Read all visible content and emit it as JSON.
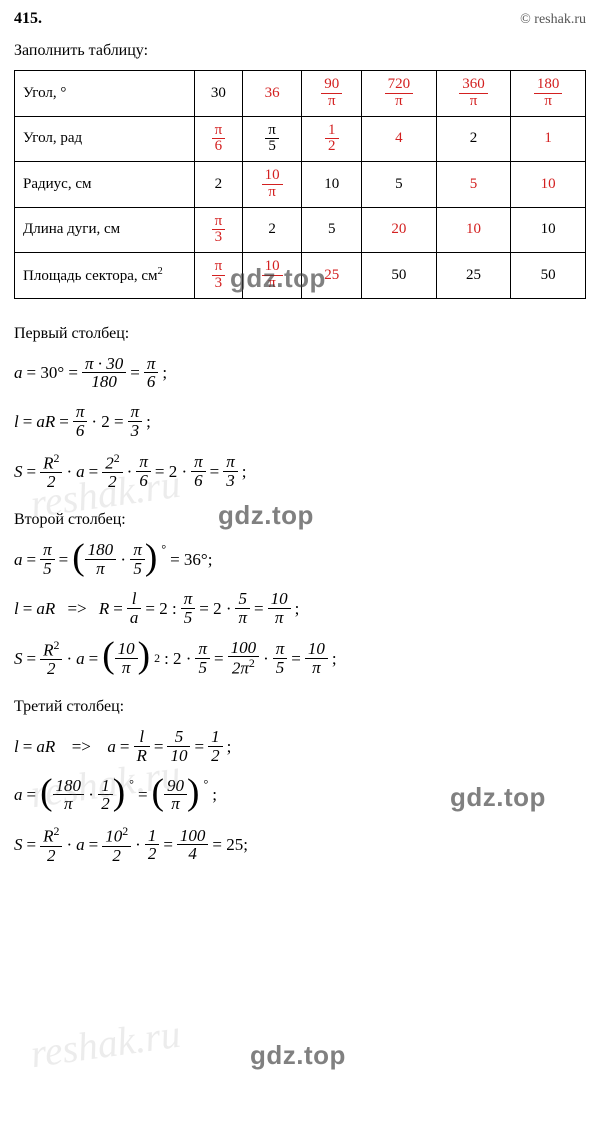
{
  "header": {
    "problem_number": "415.",
    "credit": "© reshak.ru"
  },
  "task_prompt": "Заполнить таблицу:",
  "table": {
    "rows": [
      {
        "label": "Угол, °",
        "cells": [
          {
            "type": "plain",
            "val": "30",
            "red": false
          },
          {
            "type": "plain",
            "val": "36",
            "red": true
          },
          {
            "type": "frac",
            "num": "90",
            "den": "π",
            "red": true
          },
          {
            "type": "frac",
            "num": "720",
            "den": "π",
            "red": true
          },
          {
            "type": "frac",
            "num": "360",
            "den": "π",
            "red": true
          },
          {
            "type": "frac",
            "num": "180",
            "den": "π",
            "red": true
          }
        ]
      },
      {
        "label": "Угол, рад",
        "cells": [
          {
            "type": "frac",
            "num": "π",
            "den": "6",
            "red": true
          },
          {
            "type": "frac",
            "num": "π",
            "den": "5",
            "red": false
          },
          {
            "type": "frac",
            "num": "1",
            "den": "2",
            "red": true
          },
          {
            "type": "plain",
            "val": "4",
            "red": true
          },
          {
            "type": "plain",
            "val": "2",
            "red": false
          },
          {
            "type": "plain",
            "val": "1",
            "red": true
          }
        ]
      },
      {
        "label": "Радиус, см",
        "cells": [
          {
            "type": "plain",
            "val": "2",
            "red": false
          },
          {
            "type": "frac",
            "num": "10",
            "den": "π",
            "red": true
          },
          {
            "type": "plain",
            "val": "10",
            "red": false
          },
          {
            "type": "plain",
            "val": "5",
            "red": false
          },
          {
            "type": "plain",
            "val": "5",
            "red": true
          },
          {
            "type": "plain",
            "val": "10",
            "red": true
          }
        ]
      },
      {
        "label": "Длина дуги, см",
        "cells": [
          {
            "type": "frac",
            "num": "π",
            "den": "3",
            "red": true
          },
          {
            "type": "plain",
            "val": "2",
            "red": false
          },
          {
            "type": "plain",
            "val": "5",
            "red": false
          },
          {
            "type": "plain",
            "val": "20",
            "red": true
          },
          {
            "type": "plain",
            "val": "10",
            "red": true
          },
          {
            "type": "plain",
            "val": "10",
            "red": false
          }
        ]
      },
      {
        "label": "Площадь сектора, см²",
        "label_has_sup": true,
        "label_base": "Площадь сектора, см",
        "label_sup": "2",
        "cells": [
          {
            "type": "frac",
            "num": "π",
            "den": "3",
            "red": true
          },
          {
            "type": "frac",
            "num": "10",
            "den": "π",
            "red": true
          },
          {
            "type": "plain",
            "val": "25",
            "red": true
          },
          {
            "type": "plain",
            "val": "50",
            "red": false
          },
          {
            "type": "plain",
            "val": "25",
            "red": false
          },
          {
            "type": "plain",
            "val": "50",
            "red": false
          }
        ]
      }
    ]
  },
  "sections": [
    {
      "title": "Первый столбец:"
    },
    {
      "title": "Второй столбец:"
    },
    {
      "title": "Третий столбец:"
    }
  ],
  "watermarks": {
    "gdz": "gdz.top",
    "reshak": "reshak.ru"
  },
  "colors": {
    "red": "#d32020",
    "text": "#000000",
    "bg": "#ffffff"
  }
}
